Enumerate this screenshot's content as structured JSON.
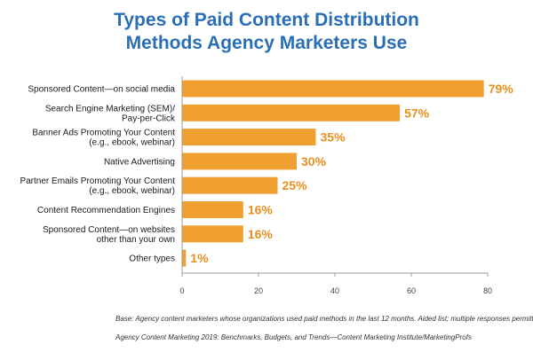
{
  "title_lines": [
    "Types of Paid Content Distribution",
    "Methods Agency Marketers Use"
  ],
  "chart_data": {
    "type": "bar",
    "orientation": "horizontal",
    "categories": [
      [
        "Sponsored Content—on social media"
      ],
      [
        "Search Engine Marketing (SEM)/",
        "Pay-per-Click"
      ],
      [
        "Banner Ads Promoting Your Content",
        "(e.g., ebook, webinar)"
      ],
      [
        "Native Advertising"
      ],
      [
        "Partner Emails Promoting Your Content",
        "(e.g., ebook, webinar)"
      ],
      [
        "Content Recommendation Engines"
      ],
      [
        "Sponsored Content—on websites",
        "other than your own"
      ],
      [
        "Other types"
      ]
    ],
    "values": [
      79,
      57,
      35,
      30,
      25,
      16,
      16,
      1
    ],
    "value_labels": [
      "79%",
      "57%",
      "35%",
      "30%",
      "25%",
      "16%",
      "16%",
      "1%"
    ],
    "xlim": [
      0,
      80
    ],
    "x_ticks": [
      0,
      20,
      40,
      60,
      80
    ],
    "grid": false,
    "bar_color": "#f0a030",
    "value_label_color": "#e8901e"
  },
  "footnotes": {
    "base": "Base: Agency content marketers whose organizations used paid methods in the last 12 months. Aided list; multiple responses permitted.",
    "source": "Agency Content Marketing 2019: Benchmarks, Budgets, and Trends—Content Marketing Institute/MarketingProfs"
  },
  "colors": {
    "title": "#2a6fb6",
    "axis": "#999999"
  }
}
